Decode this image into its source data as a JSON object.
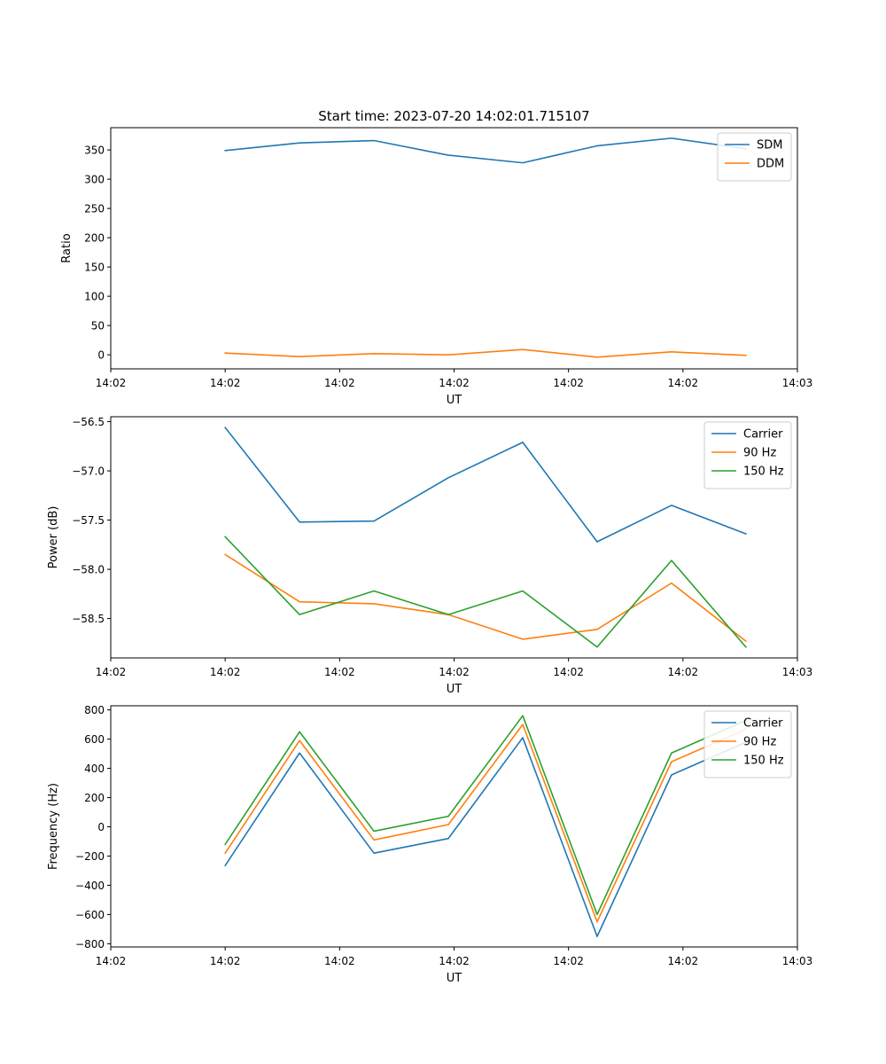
{
  "figure": {
    "suptitle": "Start time: 2023-07-20 14:02:01.715107"
  },
  "chart_data": [
    {
      "type": "line",
      "title": "Start time: 2023-07-20 14:02:01.715107",
      "xlabel": "UT",
      "ylabel": "Ratio",
      "x": [
        1.0,
        1.65,
        2.3,
        2.95,
        3.6,
        4.25,
        4.9,
        5.55
      ],
      "xlim": [
        0.0,
        6.0
      ],
      "x_ticks": [
        0,
        1,
        2,
        3,
        4,
        5,
        6
      ],
      "x_tick_labels": [
        "14:02",
        "14:02",
        "14:02",
        "14:02",
        "14:02",
        "14:02",
        "14:03"
      ],
      "ylim": [
        -24,
        388
      ],
      "y_ticks": [
        0,
        50,
        100,
        150,
        200,
        250,
        300,
        350
      ],
      "y_tick_labels": [
        "0",
        "50",
        "100",
        "150",
        "200",
        "250",
        "300",
        "350"
      ],
      "legend_location": "upper right",
      "series": [
        {
          "name": "SDM",
          "color": "#1f77b4",
          "values": [
            349,
            362,
            366,
            341,
            328,
            357,
            370,
            352
          ]
        },
        {
          "name": "DDM",
          "color": "#ff7f0e",
          "values": [
            3,
            -3,
            2,
            0,
            9,
            -4,
            5,
            -1
          ]
        }
      ]
    },
    {
      "type": "line",
      "xlabel": "UT",
      "ylabel": "Power (dB)",
      "x": [
        1.0,
        1.65,
        2.3,
        2.95,
        3.6,
        4.25,
        4.9,
        5.55
      ],
      "xlim": [
        0.0,
        6.0
      ],
      "x_ticks": [
        0,
        1,
        2,
        3,
        4,
        5,
        6
      ],
      "x_tick_labels": [
        "14:02",
        "14:02",
        "14:02",
        "14:02",
        "14:02",
        "14:02",
        "14:03"
      ],
      "ylim": [
        -58.9,
        -56.45
      ],
      "y_ticks": [
        -58.5,
        -58.0,
        -57.5,
        -57.0,
        -56.5
      ],
      "y_tick_labels": [
        "−58.5",
        "−58.0",
        "−57.5",
        "−57.0",
        "−56.5"
      ],
      "legend_location": "upper right",
      "series": [
        {
          "name": "Carrier",
          "color": "#1f77b4",
          "values": [
            -56.56,
            -57.52,
            -57.51,
            -57.07,
            -56.71,
            -57.72,
            -57.35,
            -57.64
          ]
        },
        {
          "name": "90 Hz",
          "color": "#ff7f0e",
          "values": [
            -57.85,
            -58.33,
            -58.35,
            -58.46,
            -58.71,
            -58.61,
            -58.14,
            -58.73
          ]
        },
        {
          "name": "150 Hz",
          "color": "#2ca02c",
          "values": [
            -57.67,
            -58.46,
            -58.22,
            -58.46,
            -58.22,
            -58.79,
            -57.91,
            -58.79
          ]
        }
      ]
    },
    {
      "type": "line",
      "xlabel": "UT",
      "ylabel": "Frequency (Hz)",
      "x": [
        1.0,
        1.65,
        2.3,
        2.95,
        3.6,
        4.25,
        4.9,
        5.55
      ],
      "xlim": [
        0.0,
        6.0
      ],
      "x_ticks": [
        0,
        1,
        2,
        3,
        4,
        5,
        6
      ],
      "x_tick_labels": [
        "14:02",
        "14:02",
        "14:02",
        "14:02",
        "14:02",
        "14:02",
        "14:03"
      ],
      "ylim": [
        -822,
        828
      ],
      "y_ticks": [
        -800,
        -600,
        -400,
        -200,
        0,
        200,
        400,
        600,
        800
      ],
      "y_tick_labels": [
        "−800",
        "−600",
        "−400",
        "−200",
        "0",
        "200",
        "400",
        "600",
        "800"
      ],
      "legend_location": "upper right",
      "series": [
        {
          "name": "Carrier",
          "color": "#1f77b4",
          "values": [
            -265,
            505,
            -180,
            -80,
            610,
            -750,
            355,
            578
          ]
        },
        {
          "name": "90 Hz",
          "color": "#ff7f0e",
          "values": [
            -180,
            590,
            -90,
            15,
            700,
            -650,
            445,
            668
          ]
        },
        {
          "name": "150 Hz",
          "color": "#2ca02c",
          "values": [
            -120,
            650,
            -30,
            72,
            760,
            -600,
            505,
            728
          ]
        }
      ]
    }
  ]
}
